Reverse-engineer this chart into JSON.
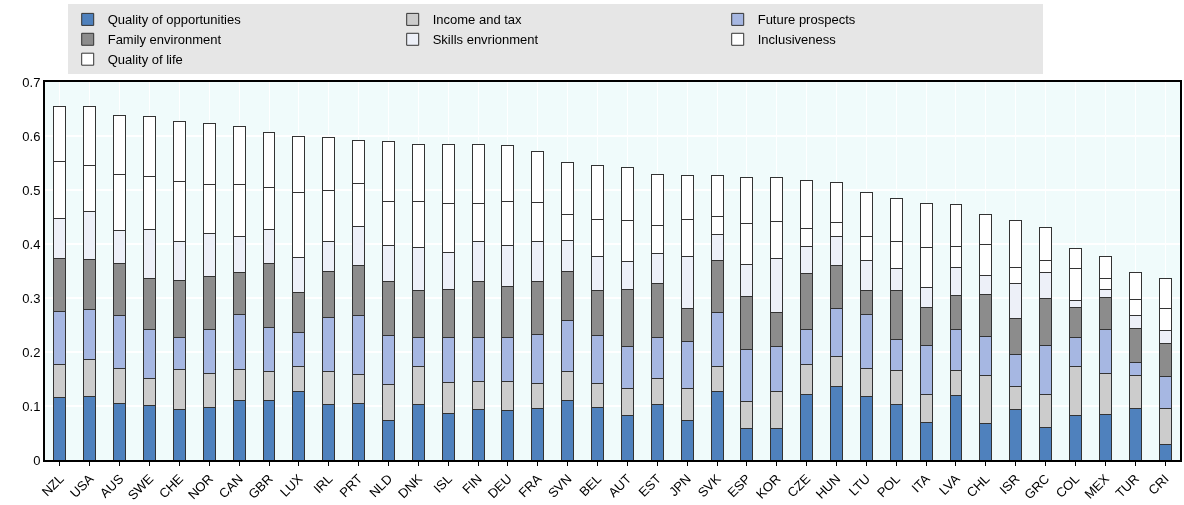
{
  "chart_data": {
    "type": "bar",
    "stacked": true,
    "grid": true,
    "legend": "top",
    "categories": [
      "NZL",
      "USA",
      "AUS",
      "SWE",
      "CHE",
      "NOR",
      "CAN",
      "GBR",
      "LUX",
      "IRL",
      "PRT",
      "NLD",
      "DNK",
      "ISL",
      "FIN",
      "DEU",
      "FRA",
      "SVN",
      "BEL",
      "AUT",
      "EST",
      "JPN",
      "SVK",
      "ESP",
      "KOR",
      "CZE",
      "HUN",
      "LTU",
      "POL",
      "ITA",
      "LVA",
      "CHL",
      "ISR",
      "GRC",
      "COL",
      "MEX",
      "TUR",
      "CRI"
    ],
    "ylim": [
      0,
      0.7
    ],
    "yticks": [
      0,
      0.1,
      0.2,
      0.3,
      0.4,
      0.5,
      0.6,
      0.7
    ],
    "series": [
      {
        "name": "Quality of opportunities",
        "color": "#4f81bd",
        "values": [
          0.115,
          0.118,
          0.104,
          0.101,
          0.094,
          0.097,
          0.11,
          0.111,
          0.126,
          0.103,
          0.105,
          0.074,
          0.103,
          0.086,
          0.094,
          0.092,
          0.096,
          0.111,
          0.098,
          0.082,
          0.103,
          0.074,
          0.126,
          0.058,
          0.058,
          0.121,
          0.136,
          0.117,
          0.103,
          0.07,
          0.12,
          0.068,
          0.094,
          0.06,
          0.082,
          0.084,
          0.096,
          0.029
        ]
      },
      {
        "name": "Income and tax",
        "color": "#cccccc",
        "values": [
          0.062,
          0.069,
          0.066,
          0.05,
          0.074,
          0.063,
          0.058,
          0.052,
          0.048,
          0.06,
          0.053,
          0.065,
          0.07,
          0.058,
          0.052,
          0.053,
          0.045,
          0.052,
          0.044,
          0.05,
          0.048,
          0.058,
          0.047,
          0.051,
          0.069,
          0.056,
          0.056,
          0.053,
          0.062,
          0.051,
          0.046,
          0.088,
          0.042,
          0.062,
          0.091,
          0.077,
          0.061,
          0.067
        ]
      },
      {
        "name": "Future prospects",
        "color": "#a6b7e2",
        "values": [
          0.098,
          0.091,
          0.098,
          0.091,
          0.059,
          0.082,
          0.102,
          0.083,
          0.063,
          0.1,
          0.11,
          0.091,
          0.053,
          0.083,
          0.08,
          0.082,
          0.091,
          0.095,
          0.088,
          0.079,
          0.076,
          0.088,
          0.101,
          0.095,
          0.084,
          0.065,
          0.088,
          0.1,
          0.059,
          0.091,
          0.076,
          0.073,
          0.06,
          0.09,
          0.053,
          0.08,
          0.023,
          0.059
        ]
      },
      {
        "name": "Family environment",
        "color": "#8c8c8c",
        "values": [
          0.098,
          0.093,
          0.095,
          0.095,
          0.105,
          0.097,
          0.077,
          0.117,
          0.074,
          0.086,
          0.093,
          0.1,
          0.088,
          0.088,
          0.104,
          0.095,
          0.098,
          0.091,
          0.084,
          0.104,
          0.099,
          0.06,
          0.096,
          0.098,
          0.062,
          0.103,
          0.081,
          0.043,
          0.09,
          0.07,
          0.063,
          0.077,
          0.066,
          0.088,
          0.056,
          0.06,
          0.064,
          0.061
        ]
      },
      {
        "name": "Skills envrionment",
        "color": "#edf0f8",
        "values": [
          0.074,
          0.089,
          0.062,
          0.09,
          0.072,
          0.081,
          0.066,
          0.063,
          0.064,
          0.055,
          0.072,
          0.067,
          0.079,
          0.07,
          0.074,
          0.075,
          0.074,
          0.057,
          0.063,
          0.052,
          0.057,
          0.096,
          0.047,
          0.06,
          0.1,
          0.05,
          0.053,
          0.057,
          0.04,
          0.038,
          0.052,
          0.035,
          0.064,
          0.047,
          0.014,
          0.014,
          0.024,
          0.024
        ]
      },
      {
        "name": "Inclusiveness",
        "color": "#ffffff",
        "values": [
          0.106,
          0.085,
          0.103,
          0.098,
          0.111,
          0.09,
          0.097,
          0.079,
          0.12,
          0.096,
          0.079,
          0.082,
          0.086,
          0.09,
          0.071,
          0.082,
          0.073,
          0.049,
          0.068,
          0.076,
          0.051,
          0.07,
          0.034,
          0.076,
          0.068,
          0.033,
          0.025,
          0.044,
          0.05,
          0.073,
          0.039,
          0.059,
          0.031,
          0.022,
          0.058,
          0.022,
          0.03,
          0.041
        ]
      },
      {
        "name": "Quality of life",
        "color": "#ffffff",
        "values": [
          0.102,
          0.11,
          0.11,
          0.111,
          0.111,
          0.114,
          0.107,
          0.101,
          0.105,
          0.098,
          0.079,
          0.11,
          0.105,
          0.109,
          0.109,
          0.103,
          0.095,
          0.096,
          0.1,
          0.098,
          0.095,
          0.081,
          0.076,
          0.086,
          0.083,
          0.089,
          0.075,
          0.081,
          0.081,
          0.082,
          0.078,
          0.054,
          0.086,
          0.062,
          0.038,
          0.039,
          0.049,
          0.056
        ]
      }
    ]
  }
}
